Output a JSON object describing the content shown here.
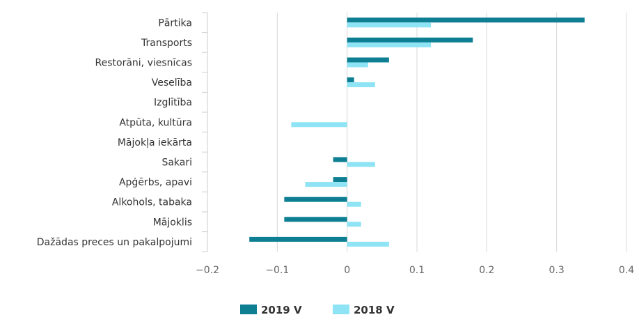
{
  "chart_data": {
    "type": "bar",
    "orientation": "horizontal",
    "categories": [
      "Pārtika",
      "Transports",
      "Restorāni, viesnīcas",
      "Veselība",
      "Izglītība",
      "Atpūta, kultūra",
      "Mājokļa iekārta",
      "Sakari",
      "Apģērbs, apavi",
      "Alkohols, tabaka",
      "Mājoklis",
      "Dažādas preces un pakalpojumi"
    ],
    "series": [
      {
        "name": "2019 V",
        "color": "#0e7f93",
        "values": [
          0.34,
          0.18,
          0.06,
          0.01,
          0,
          0,
          0,
          -0.02,
          -0.02,
          -0.09,
          -0.09,
          -0.14
        ]
      },
      {
        "name": "2018 V",
        "color": "#8ee3f5",
        "values": [
          0.12,
          0.12,
          0.03,
          0.04,
          0,
          -0.08,
          0,
          0.04,
          -0.06,
          0.02,
          0.02,
          0.06
        ]
      }
    ],
    "xlim": [
      -0.2,
      0.4
    ],
    "xticks": [
      "−0.2",
      "−0.1",
      "0",
      "0.1",
      "0.2",
      "0.3",
      "0.4"
    ],
    "xtick_values": [
      -0.2,
      -0.1,
      0,
      0.1,
      0.2,
      0.3,
      0.4
    ],
    "grid": true,
    "legend_position": "bottom-center"
  }
}
